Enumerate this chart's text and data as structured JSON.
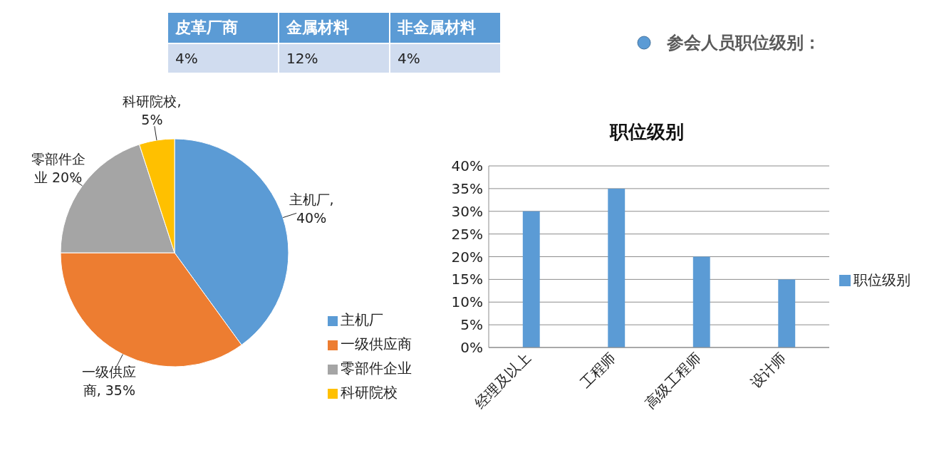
{
  "chart_data": [
    {
      "type": "other",
      "categories": [
        "皮革厂商",
        "金属材料",
        "非金属材料"
      ],
      "values": [
        4,
        12,
        4
      ],
      "value_labels": [
        "4%",
        "12%",
        "4%"
      ]
    },
    {
      "type": "other",
      "title": "参会人员职位级别："
    },
    {
      "type": "pie",
      "categories": [
        "主机厂",
        "一级供应商",
        "零部件企业",
        "科研院校"
      ],
      "values": [
        40,
        35,
        20,
        5
      ],
      "colors": [
        "#5b9bd5",
        "#ed7d31",
        "#a5a5a5",
        "#ffc000"
      ],
      "value_labels": [
        "主机厂, 40%",
        "一级供应商, 35%",
        "零部件企业 20%",
        "科研院校, 5%"
      ],
      "legend": "bottom right"
    },
    {
      "type": "bar",
      "title": "职位级别",
      "categories": [
        "经理及以上",
        "工程师",
        "高级工程师",
        "设计师"
      ],
      "series": [
        {
          "name": "职位级别",
          "color": "#5b9bd5",
          "values": [
            30,
            35,
            20,
            15
          ]
        }
      ],
      "ylim": [
        0,
        40
      ],
      "yticks": [
        {
          "value": 0,
          "label": "0%"
        },
        {
          "value": 5,
          "label": "5%"
        },
        {
          "value": 10,
          "label": "10%"
        },
        {
          "value": 15,
          "label": "15%"
        },
        {
          "value": 20,
          "label": "20%"
        },
        {
          "value": 25,
          "label": "25%"
        },
        {
          "value": 30,
          "label": "30%"
        },
        {
          "value": 35,
          "label": "35%"
        },
        {
          "value": 40,
          "label": "40%"
        }
      ],
      "grid": "y",
      "legend": "right"
    }
  ]
}
